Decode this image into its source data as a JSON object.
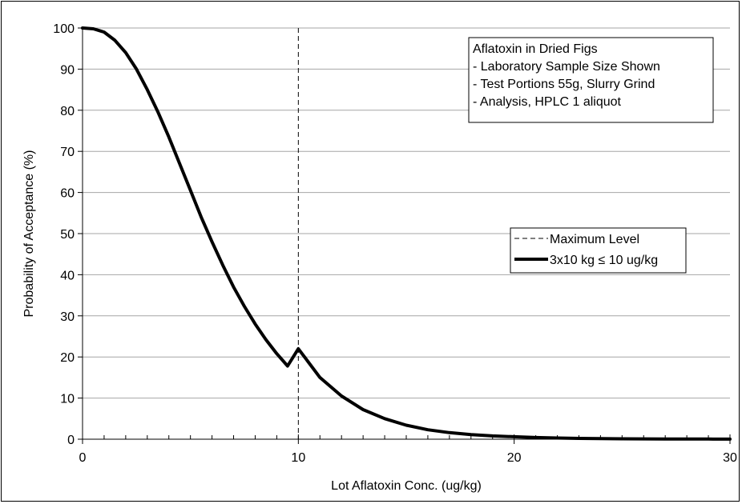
{
  "chart_data": {
    "type": "line",
    "xlabel": "Lot Aflatoxin Conc. (ug/kg)",
    "ylabel": "Probability of Acceptance (%)",
    "xlim": [
      0,
      30
    ],
    "ylim": [
      0,
      100
    ],
    "x_ticks": [
      "0",
      "10",
      "20",
      "30"
    ],
    "y_ticks": [
      "0",
      "10",
      "20",
      "30",
      "40",
      "50",
      "60",
      "70",
      "80",
      "90",
      "100"
    ],
    "grid": "horizontal",
    "annotation": {
      "lines": [
        "Aflatoxin in Dried Figs",
        "- Laboratory Sample Size Shown",
        "- Test Portions 55g, Slurry Grind",
        "- Analysis, HPLC 1 aliquot"
      ]
    },
    "legend": {
      "placement": "right",
      "entries": [
        "Maximum Level",
        "3x10 kg ≤ 10 ug/kg"
      ]
    },
    "max_level_line": {
      "x": 10,
      "label": "Maximum Level"
    },
    "series": [
      {
        "name": "3x10 kg ≤ 10 ug/kg",
        "color": "#000000",
        "x": [
          0,
          0.5,
          1,
          1.5,
          2,
          2.5,
          3,
          3.5,
          4,
          4.5,
          5,
          5.5,
          6,
          6.5,
          7,
          7.5,
          8,
          8.5,
          9,
          9.5,
          10,
          11,
          12,
          13,
          14,
          15,
          16,
          17,
          18,
          19,
          20,
          21,
          22,
          23,
          24,
          25,
          26,
          27,
          28,
          29,
          30
        ],
        "y": [
          100,
          99.8,
          99,
          97,
          94,
          90,
          85,
          79.5,
          73.5,
          67,
          60.5,
          54,
          48,
          42.3,
          37,
          32.3,
          28,
          24.2,
          20.8,
          17.8,
          22,
          15,
          10.5,
          7.2,
          5,
          3.4,
          2.3,
          1.6,
          1.1,
          0.8,
          0.6,
          0.4,
          0.3,
          0.2,
          0.15,
          0.1,
          0.08,
          0.05,
          0.04,
          0.03,
          0.02
        ]
      }
    ]
  }
}
